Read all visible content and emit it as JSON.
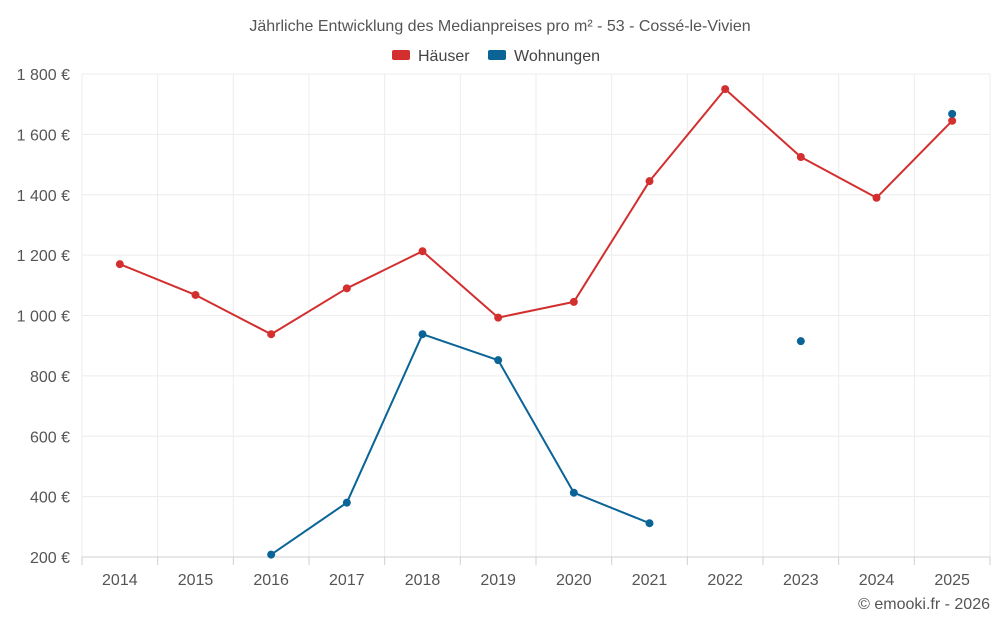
{
  "chart_data": {
    "type": "line",
    "title": "Jährliche Entwicklung des Medianpreises pro m² - 53 - Cossé-le-Vivien",
    "categories": [
      "2014",
      "2015",
      "2016",
      "2017",
      "2018",
      "2019",
      "2020",
      "2021",
      "2022",
      "2023",
      "2024",
      "2025"
    ],
    "series": [
      {
        "name": "Häuser",
        "color": "#d32f2f",
        "values": [
          1170,
          1068,
          938,
          1090,
          1213,
          993,
          1045,
          1445,
          1750,
          1525,
          1390,
          1645
        ]
      },
      {
        "name": "Wohnungen",
        "color": "#0a6496",
        "values": [
          null,
          null,
          208,
          380,
          938,
          852,
          413,
          312,
          null,
          915,
          null,
          1668
        ]
      }
    ],
    "yticks": [
      200,
      400,
      600,
      800,
      1000,
      1200,
      1400,
      1600,
      1800
    ],
    "ytick_labels": [
      "200 €",
      "400 €",
      "600 €",
      "800 €",
      "1 000 €",
      "1 200 €",
      "1 400 €",
      "1 600 €",
      "1 800 €"
    ],
    "ylim": [
      200,
      1800
    ],
    "xlabel": "",
    "ylabel": "",
    "legend_position": "top-center",
    "grid": true,
    "credit": "© emooki.fr - 2026"
  }
}
